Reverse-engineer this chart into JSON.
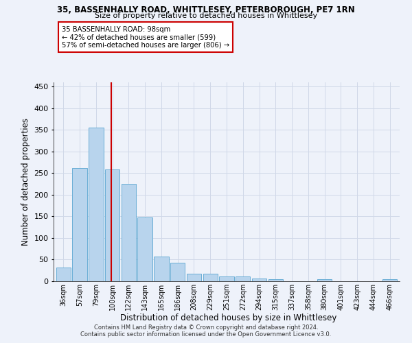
{
  "title1": "35, BASSENHALLY ROAD, WHITTLESEY, PETERBOROUGH, PE7 1RN",
  "title2": "Size of property relative to detached houses in Whittlesey",
  "xlabel": "Distribution of detached houses by size in Whittlesey",
  "ylabel": "Number of detached properties",
  "categories": [
    "36sqm",
    "57sqm",
    "79sqm",
    "100sqm",
    "122sqm",
    "143sqm",
    "165sqm",
    "186sqm",
    "208sqm",
    "229sqm",
    "251sqm",
    "272sqm",
    "294sqm",
    "315sqm",
    "337sqm",
    "358sqm",
    "380sqm",
    "401sqm",
    "423sqm",
    "444sqm",
    "466sqm"
  ],
  "values": [
    31,
    261,
    356,
    258,
    226,
    148,
    57,
    43,
    18,
    18,
    11,
    11,
    7,
    5,
    0,
    0,
    5,
    0,
    0,
    0,
    4
  ],
  "bar_color": "#b8d4ed",
  "bar_edge_color": "#6aaed6",
  "vline_x": 2.95,
  "vline_color": "#cc0000",
  "annotation_line1": "35 BASSENHALLY ROAD: 98sqm",
  "annotation_line2": "← 42% of detached houses are smaller (599)",
  "annotation_line3": "57% of semi-detached houses are larger (806) →",
  "annotation_box_color": "#ffffff",
  "annotation_box_edge": "#cc0000",
  "ylim": [
    0,
    460
  ],
  "yticks": [
    0,
    50,
    100,
    150,
    200,
    250,
    300,
    350,
    400,
    450
  ],
  "footer": "Contains HM Land Registry data © Crown copyright and database right 2024.\nContains public sector information licensed under the Open Government Licence v3.0.",
  "bg_color": "#eef2fa",
  "grid_color": "#d0d8e8"
}
